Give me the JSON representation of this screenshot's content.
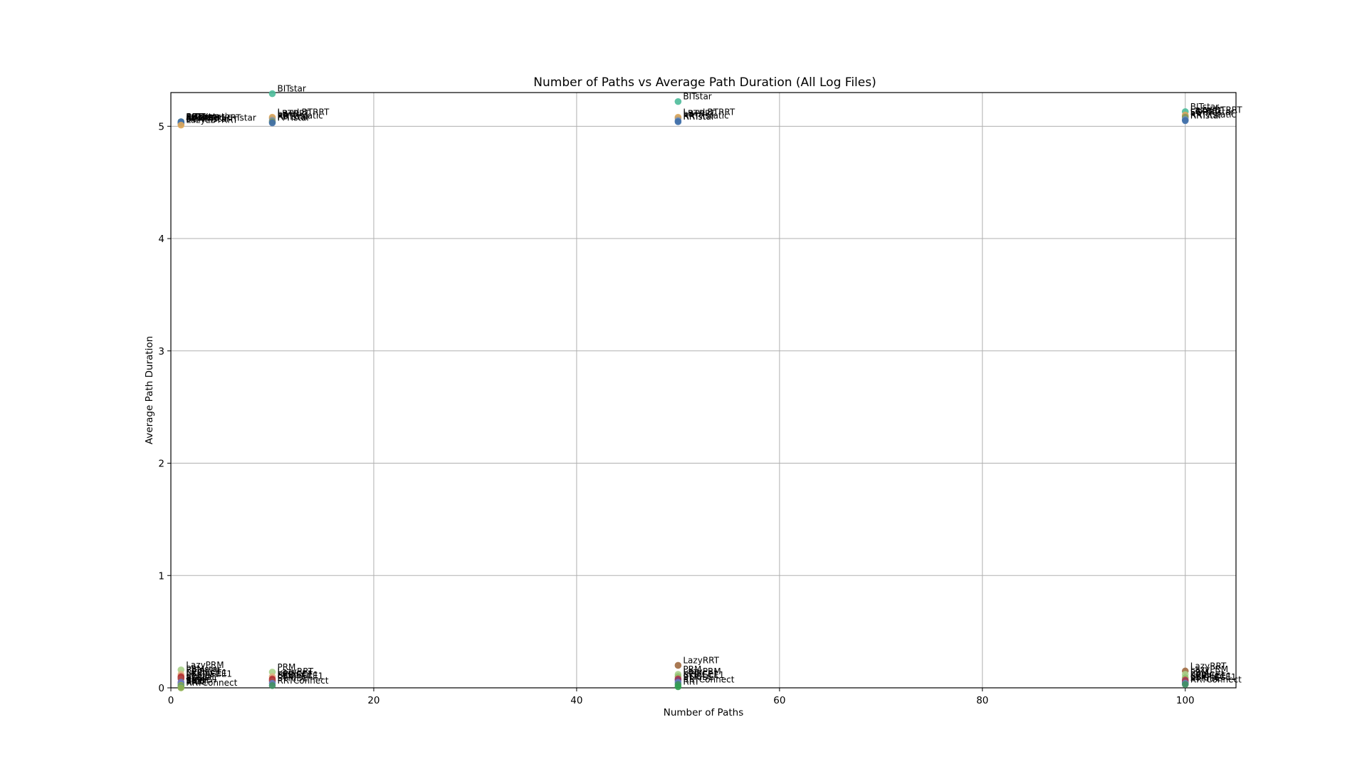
{
  "chart_data": {
    "type": "scatter",
    "title": "Number of Paths vs Average Path Duration (All Log Files)",
    "xlabel": "Number of Paths",
    "ylabel": "Average Path Duration",
    "xlim": [
      0,
      105
    ],
    "ylim": [
      0,
      5.3
    ],
    "xticks": [
      0,
      20,
      40,
      60,
      80,
      100
    ],
    "yticks": [
      0,
      1,
      2,
      3,
      4,
      5
    ],
    "grid": true,
    "points": [
      {
        "x": 1,
        "y": 5.04,
        "label": "BITstar",
        "color": "#4dbb9a"
      },
      {
        "x": 1,
        "y": 5.04,
        "label": "ABITstar",
        "color": "#7f9a5a"
      },
      {
        "x": 1,
        "y": 5.03,
        "label": "InformedRRTstar",
        "color": "#6c8ebf"
      },
      {
        "x": 1,
        "y": 5.03,
        "label": "RRTstar",
        "color": "#a07060"
      },
      {
        "x": 1,
        "y": 5.02,
        "label": "SORRTstar",
        "color": "#c9a36a"
      },
      {
        "x": 1,
        "y": 5.03,
        "label": "FMT",
        "color": "#3f6fa8"
      },
      {
        "x": 1,
        "y": 5.03,
        "label": "LBTRRT",
        "color": "#5a8dc8"
      },
      {
        "x": 1,
        "y": 5.04,
        "label": "RRTXstatic",
        "color": "#3f6fa8"
      },
      {
        "x": 1,
        "y": 5.01,
        "label": "LazyLBTRRT",
        "color": "#e0a85a"
      },
      {
        "x": 1,
        "y": 0.16,
        "label": "LazyPRM",
        "color": "#a8d08a"
      },
      {
        "x": 1,
        "y": 0.12,
        "label": "PRMstar",
        "color": "#e0b080"
      },
      {
        "x": 1,
        "y": 0.1,
        "label": "KPIECE1",
        "color": "#c04040"
      },
      {
        "x": 1,
        "y": 0.09,
        "label": "BKPIECE1",
        "color": "#b03030"
      },
      {
        "x": 1,
        "y": 0.08,
        "label": "LBKPIECE1",
        "color": "#b04848"
      },
      {
        "x": 1,
        "y": 0.05,
        "label": "STRIDE",
        "color": "#6080c0"
      },
      {
        "x": 1,
        "y": 0.04,
        "label": "PDST",
        "color": "#8a6ab0"
      },
      {
        "x": 1,
        "y": 0.03,
        "label": "ProjEST",
        "color": "#5090c0"
      },
      {
        "x": 1,
        "y": 0.02,
        "label": "BiEST",
        "color": "#7ab070"
      },
      {
        "x": 1,
        "y": 0.02,
        "label": "SBL",
        "color": "#a0a040"
      },
      {
        "x": 1,
        "y": 0.01,
        "label": "RRT",
        "color": "#409060"
      },
      {
        "x": 1,
        "y": 0.01,
        "label": "TRRT",
        "color": "#60a080"
      },
      {
        "x": 1,
        "y": 0.0,
        "label": "RRTConnect",
        "color": "#90b050"
      },
      {
        "x": 10,
        "y": 5.29,
        "label": "BITstar",
        "color": "#4dbb9a"
      },
      {
        "x": 10,
        "y": 5.08,
        "label": "LazyLBTRRT",
        "color": "#e0a85a"
      },
      {
        "x": 10,
        "y": 5.07,
        "label": "LBTRRT",
        "color": "#c9a36a"
      },
      {
        "x": 10,
        "y": 5.05,
        "label": "RRTXstatic",
        "color": "#6c8ebf"
      },
      {
        "x": 10,
        "y": 5.04,
        "label": "RRTstar",
        "color": "#7f9a5a"
      },
      {
        "x": 10,
        "y": 5.03,
        "label": "FMTstar",
        "color": "#3f6fa8"
      },
      {
        "x": 10,
        "y": 0.14,
        "label": "PRM",
        "color": "#a8d08a"
      },
      {
        "x": 10,
        "y": 0.1,
        "label": "LazyRRT",
        "color": "#e0b080"
      },
      {
        "x": 10,
        "y": 0.08,
        "label": "KPIECE1",
        "color": "#c04040"
      },
      {
        "x": 10,
        "y": 0.07,
        "label": "BKPIECE1",
        "color": "#b03030"
      },
      {
        "x": 10,
        "y": 0.06,
        "label": "LBKPIECE1",
        "color": "#b04848"
      },
      {
        "x": 10,
        "y": 0.04,
        "label": "STRIDE",
        "color": "#6080c0"
      },
      {
        "x": 10,
        "y": 0.02,
        "label": "RRTConnect",
        "color": "#409060"
      },
      {
        "x": 50,
        "y": 5.22,
        "label": "BITstar",
        "color": "#4dbb9a"
      },
      {
        "x": 50,
        "y": 5.08,
        "label": "LazyLBTRRT",
        "color": "#e0a85a"
      },
      {
        "x": 50,
        "y": 5.07,
        "label": "LBTRRT",
        "color": "#c9a36a"
      },
      {
        "x": 50,
        "y": 5.05,
        "label": "RRTXstatic",
        "color": "#6c8ebf"
      },
      {
        "x": 50,
        "y": 5.04,
        "label": "RRTstar",
        "color": "#3f6fa8"
      },
      {
        "x": 50,
        "y": 0.2,
        "label": "LazyRRT",
        "color": "#a06a40"
      },
      {
        "x": 50,
        "y": 0.12,
        "label": "PRM",
        "color": "#a8d08a"
      },
      {
        "x": 50,
        "y": 0.1,
        "label": "LazyPRM",
        "color": "#90c070"
      },
      {
        "x": 50,
        "y": 0.08,
        "label": "KPIECE1",
        "color": "#c04040"
      },
      {
        "x": 50,
        "y": 0.07,
        "label": "BKPIECE1",
        "color": "#8a3a6a"
      },
      {
        "x": 50,
        "y": 0.05,
        "label": "STRIDE",
        "color": "#6080c0"
      },
      {
        "x": 50,
        "y": 0.03,
        "label": "RRTConnect",
        "color": "#409060"
      },
      {
        "x": 50,
        "y": 0.01,
        "label": "RRT",
        "color": "#30a050"
      },
      {
        "x": 100,
        "y": 5.13,
        "label": "BITstar",
        "color": "#4dbb9a"
      },
      {
        "x": 100,
        "y": 5.1,
        "label": "LazyLBTRRT",
        "color": "#e0a85a"
      },
      {
        "x": 100,
        "y": 5.09,
        "label": "LBTRRT",
        "color": "#c9a36a"
      },
      {
        "x": 100,
        "y": 5.08,
        "label": "SORRTstar",
        "color": "#7f9a5a"
      },
      {
        "x": 100,
        "y": 5.06,
        "label": "RRTXstatic",
        "color": "#6c8ebf"
      },
      {
        "x": 100,
        "y": 5.05,
        "label": "RRTstar",
        "color": "#3f6fa8"
      },
      {
        "x": 100,
        "y": 0.15,
        "label": "LazyRRT",
        "color": "#a06a40"
      },
      {
        "x": 100,
        "y": 0.12,
        "label": "LazyPRM",
        "color": "#a8d08a"
      },
      {
        "x": 100,
        "y": 0.09,
        "label": "PRM",
        "color": "#90c070"
      },
      {
        "x": 100,
        "y": 0.07,
        "label": "KPIECE1",
        "color": "#c04040"
      },
      {
        "x": 100,
        "y": 0.06,
        "label": "BKPIECE1",
        "color": "#8a3a6a"
      },
      {
        "x": 100,
        "y": 0.05,
        "label": "LBKPIECE1",
        "color": "#b04848"
      },
      {
        "x": 100,
        "y": 0.04,
        "label": "STRIDE",
        "color": "#6080c0"
      },
      {
        "x": 100,
        "y": 0.03,
        "label": "RRTConnect",
        "color": "#409060"
      }
    ]
  }
}
